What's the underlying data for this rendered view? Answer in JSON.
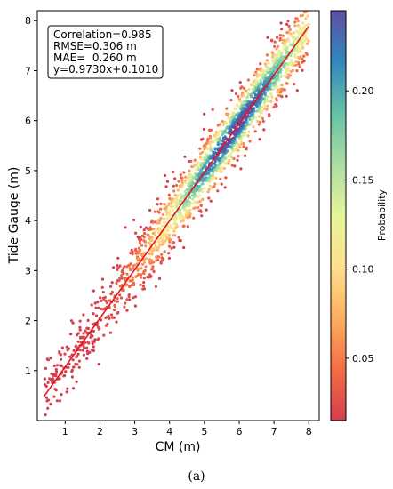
{
  "chart_data": {
    "type": "scatter",
    "xlabel": "CM (m)",
    "ylabel": "Tide Gauge (m)",
    "xlim": [
      0.2,
      8.3
    ],
    "ylim": [
      0.0,
      8.2
    ],
    "xticks": [
      1,
      2,
      3,
      4,
      5,
      6,
      7,
      8
    ],
    "yticks": [
      1,
      2,
      3,
      4,
      5,
      6,
      7,
      8
    ],
    "fit_line": {
      "slope": 0.973,
      "intercept": 0.101,
      "x_range": [
        0.4,
        8.0
      ],
      "color": "#e8141c"
    },
    "stats": [
      "Correlation=0.985",
      "RMSE=0.306 m",
      "MAE=  0.260 m",
      "y=0.9730x+0.1010"
    ],
    "colorbar": {
      "label": "Probability",
      "range": [
        0.015,
        0.245
      ],
      "ticks": [
        "0.05",
        "0.10",
        "0.15",
        "0.20"
      ],
      "tick_values": [
        0.05,
        0.1,
        0.15,
        0.2
      ],
      "colormap": "Spectral",
      "colors": [
        "#d53e4f",
        "#f46d43",
        "#fdae61",
        "#fee08b",
        "#e6f598",
        "#abdda4",
        "#66c2a5",
        "#3288bd",
        "#5e4fa2"
      ]
    },
    "scatter_density": {
      "x_range": [
        0.4,
        8.0
      ],
      "point_count": 2000,
      "residual_sd": 0.31,
      "density_peak_x": 5.9,
      "density_spread": 1.6
    },
    "grid": false
  },
  "panel_label": "(a)"
}
